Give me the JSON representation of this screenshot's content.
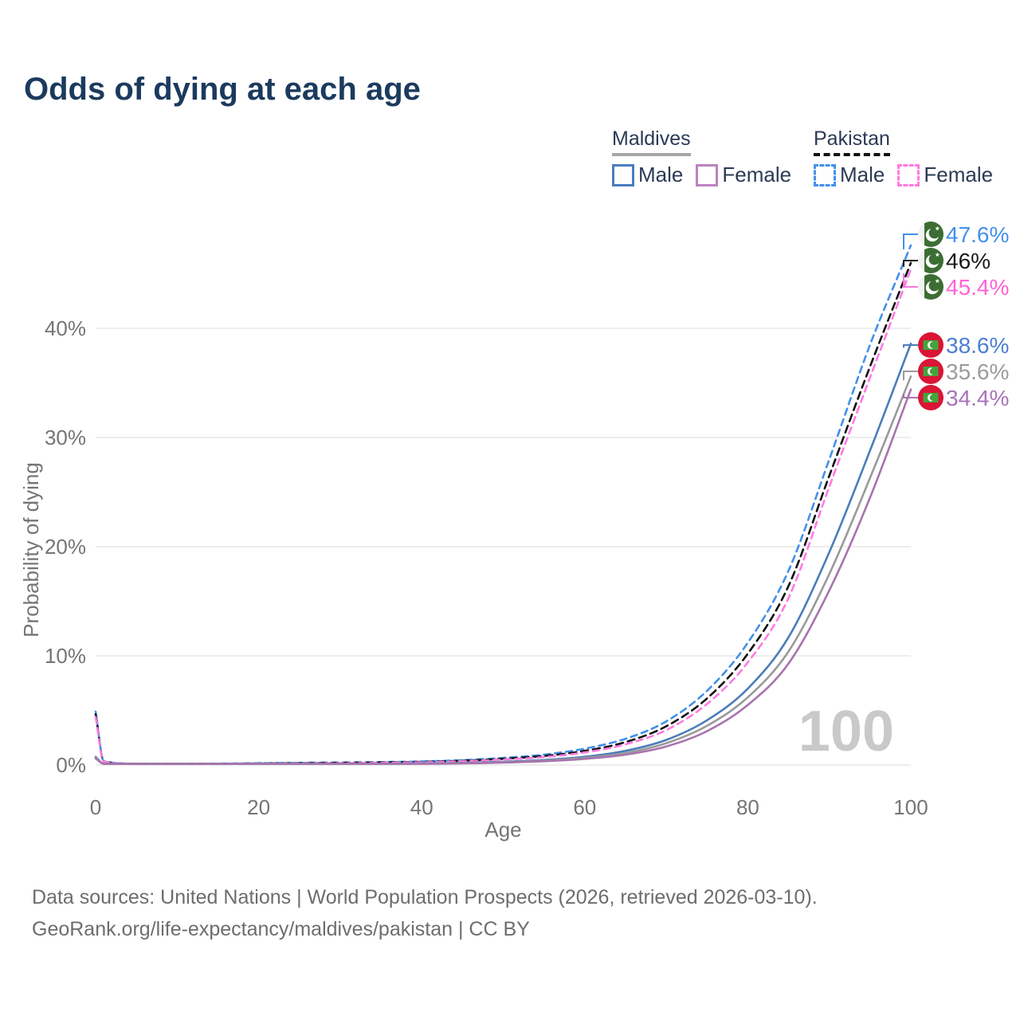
{
  "title": "Odds of dying at each age",
  "legend": {
    "groups": [
      {
        "name": "Maldives",
        "style": "solid",
        "items": [
          {
            "label": "Male",
            "color": "#4a7dbf"
          },
          {
            "label": "Female",
            "color": "#bd82c3"
          }
        ]
      },
      {
        "name": "Pakistan",
        "style": "dashed",
        "items": [
          {
            "label": "Male",
            "color": "#4390ea"
          },
          {
            "label": "Female",
            "color": "#ff7ae1"
          }
        ]
      }
    ]
  },
  "watermark": "100",
  "footer": {
    "line1": "Data sources: United Nations | World Population Prospects (2026, retrieved 2026-03-10).",
    "line2": "GeoRank.org/life-expectancy/maldives/pakistan | CC BY"
  },
  "chart_data": {
    "type": "line",
    "title": "Odds of dying at each age",
    "xlabel": "Age",
    "ylabel": "Probability of dying",
    "xlim": [
      0,
      100
    ],
    "ylim_pct": [
      0,
      48
    ],
    "x_ticks": [
      0,
      20,
      40,
      60,
      80,
      100
    ],
    "y_ticks": [
      {
        "value": 0,
        "label": "0%"
      },
      {
        "value": 10,
        "label": "10%"
      },
      {
        "value": 20,
        "label": "20%"
      },
      {
        "value": 30,
        "label": "30%"
      },
      {
        "value": 40,
        "label": "40%"
      }
    ],
    "grid": "horizontal-only",
    "legend_position": "top-right",
    "ages": [
      0,
      1,
      5,
      10,
      15,
      20,
      25,
      30,
      35,
      40,
      45,
      50,
      55,
      60,
      65,
      70,
      75,
      80,
      85,
      90,
      95,
      100
    ],
    "series": [
      {
        "name": "Pakistan Male",
        "country": "pakistan",
        "sex": "male",
        "style": "dashed",
        "color": "#4390ea",
        "label_color": "#4390ea",
        "end_label": "47.6%",
        "values": [
          4.9,
          0.35,
          0.12,
          0.1,
          0.13,
          0.17,
          0.2,
          0.23,
          0.27,
          0.33,
          0.45,
          0.65,
          0.95,
          1.5,
          2.4,
          4.0,
          6.8,
          11.2,
          17.8,
          28.0,
          38.5,
          47.6
        ]
      },
      {
        "name": "Pakistan",
        "country": "pakistan",
        "sex": "both",
        "style": "dashed",
        "color": "#111111",
        "label_color": "#1a1a1a",
        "end_label": "46%",
        "values": [
          4.65,
          0.33,
          0.11,
          0.09,
          0.11,
          0.14,
          0.17,
          0.2,
          0.23,
          0.29,
          0.39,
          0.57,
          0.83,
          1.3,
          2.1,
          3.55,
          6.1,
          10.2,
          16.4,
          26.5,
          36.5,
          46.0
        ]
      },
      {
        "name": "Pakistan Female",
        "country": "pakistan",
        "sex": "female",
        "style": "dashed",
        "color": "#ff7ae1",
        "label_color": "#ff63d6",
        "end_label": "45.4%",
        "values": [
          4.4,
          0.31,
          0.1,
          0.08,
          0.1,
          0.12,
          0.14,
          0.17,
          0.2,
          0.25,
          0.34,
          0.5,
          0.73,
          1.15,
          1.9,
          3.2,
          5.6,
          9.4,
          15.3,
          25.5,
          35.5,
          45.4
        ]
      },
      {
        "name": "Maldives Male",
        "country": "maldives",
        "sex": "male",
        "style": "solid",
        "color": "#4a7db9",
        "label_color": "#4a7fd0",
        "end_label": "38.6%",
        "values": [
          0.75,
          0.05,
          0.03,
          0.03,
          0.05,
          0.07,
          0.08,
          0.09,
          0.11,
          0.14,
          0.2,
          0.3,
          0.46,
          0.75,
          1.3,
          2.3,
          4.1,
          7.0,
          11.7,
          19.5,
          28.8,
          38.6
        ]
      },
      {
        "name": "Maldives",
        "country": "maldives",
        "sex": "both",
        "style": "solid",
        "color": "#9a9a9a",
        "label_color": "#9b9b9b",
        "end_label": "35.6%",
        "values": [
          0.68,
          0.05,
          0.025,
          0.025,
          0.04,
          0.055,
          0.065,
          0.075,
          0.09,
          0.12,
          0.17,
          0.26,
          0.4,
          0.65,
          1.1,
          2.0,
          3.6,
          6.2,
          10.4,
          17.5,
          26.3,
          35.6
        ]
      },
      {
        "name": "Maldives Female",
        "country": "maldives",
        "sex": "female",
        "style": "solid",
        "color": "#a873ae",
        "label_color": "#a873b8",
        "end_label": "34.4%",
        "values": [
          0.6,
          0.04,
          0.02,
          0.02,
          0.03,
          0.04,
          0.05,
          0.06,
          0.08,
          0.1,
          0.15,
          0.22,
          0.35,
          0.56,
          0.95,
          1.7,
          3.1,
          5.5,
          9.3,
          16.0,
          24.5,
          34.4
        ]
      }
    ],
    "flags": {
      "pakistan": {
        "green": "#3c6e33",
        "white": "#f2f2f2"
      },
      "maldives": {
        "red": "#da1535",
        "green": "#44a33c",
        "white": "#ffffff"
      }
    }
  }
}
